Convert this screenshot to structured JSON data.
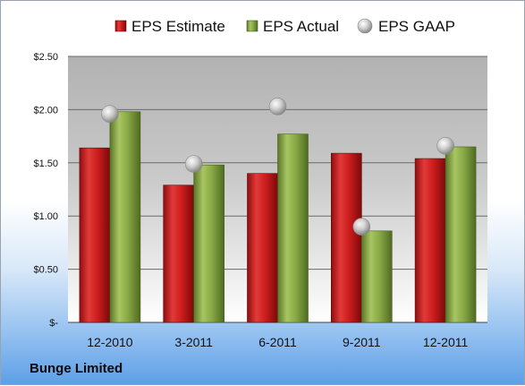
{
  "company": "Bunge Limited",
  "chart_data": {
    "type": "bar",
    "categories": [
      "12-2010",
      "3-2011",
      "6-2011",
      "9-2011",
      "12-2011"
    ],
    "series": [
      {
        "name": "EPS Estimate",
        "type": "bar",
        "color": "#d81e1e",
        "values": [
          1.64,
          1.29,
          1.4,
          1.59,
          1.54
        ]
      },
      {
        "name": "EPS Actual",
        "type": "bar",
        "color": "#8fb04a",
        "values": [
          1.98,
          1.48,
          1.77,
          0.86,
          1.65
        ]
      },
      {
        "name": "EPS GAAP",
        "type": "scatter",
        "color": "#b8b8b8",
        "values": [
          1.96,
          1.49,
          2.03,
          0.9,
          1.66
        ]
      }
    ],
    "yticks": [
      {
        "value": 0,
        "label": "$-"
      },
      {
        "value": 0.5,
        "label": "$0.50"
      },
      {
        "value": 1,
        "label": "$1.00"
      },
      {
        "value": 1.5,
        "label": "$1.50"
      },
      {
        "value": 2,
        "label": "$2.00"
      },
      {
        "value": 2.5,
        "label": "$2.50"
      }
    ],
    "ylim": [
      0,
      2.5
    ],
    "grid": true,
    "legend_position": "top"
  }
}
